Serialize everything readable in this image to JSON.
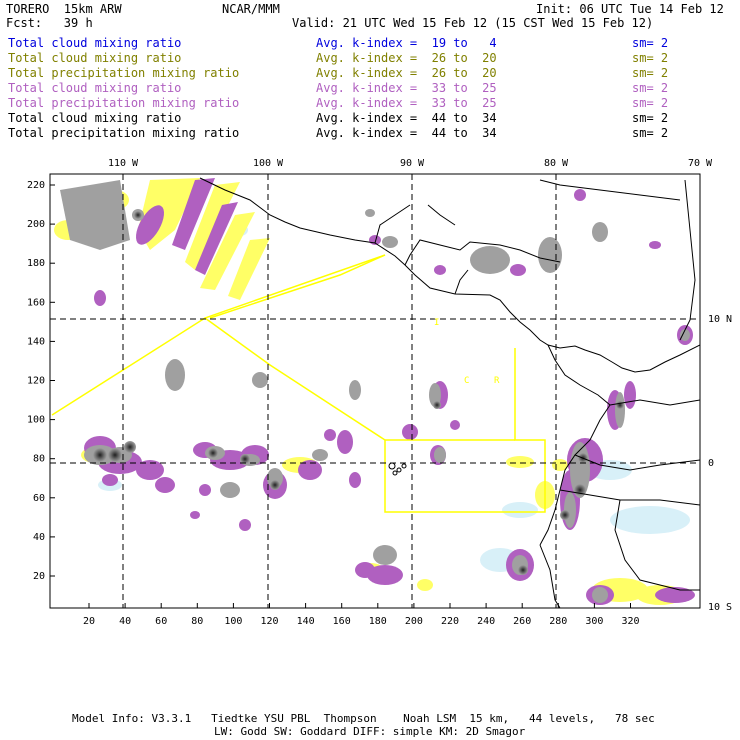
{
  "header": {
    "model": "TORERO  15km ARW",
    "center": "NCAR/MMM",
    "init": "Init: 06 UTC Tue 14 Feb 12",
    "fcst": "Fcst:   39 h",
    "valid": "Valid: 21 UTC Wed 15 Feb 12 (15 CST Wed 15 Feb 12)"
  },
  "legend": [
    {
      "field": "Total cloud mixing ratio",
      "range": "Avg. k-index =  19 to   4",
      "sm": "sm= 2",
      "color": "#0000dd"
    },
    {
      "field": "Total cloud mixing ratio",
      "range": "Avg. k-index =  26 to  20",
      "sm": "sm= 2",
      "color": "#808000"
    },
    {
      "field": "Total precipitation mixing ratio",
      "range": "Avg. k-index =  26 to  20",
      "sm": "sm= 2",
      "color": "#808000"
    },
    {
      "field": "Total cloud mixing ratio",
      "range": "Avg. k-index =  33 to  25",
      "sm": "sm= 2",
      "color": "#b060c0"
    },
    {
      "field": "Total precipitation mixing ratio",
      "range": "Avg. k-index =  33 to  25",
      "sm": "sm= 2",
      "color": "#b060c0"
    },
    {
      "field": "Total cloud mixing ratio",
      "range": "Avg. k-index =  44 to  34",
      "sm": "sm= 2",
      "color": "#000000"
    },
    {
      "field": "Total precipitation mixing ratio",
      "range": "Avg. k-index =  44 to  34",
      "sm": "sm= 2",
      "color": "#000000"
    }
  ],
  "axes": {
    "top_labels": [
      "110 W",
      "100 W",
      "90 W",
      "80 W",
      "70 W"
    ],
    "left_labels": [
      "220",
      "200",
      "180",
      "160",
      "140",
      "120",
      "100",
      "80",
      "60",
      "40",
      "20"
    ],
    "bottom_labels": [
      "20",
      "40",
      "60",
      "80",
      "100",
      "120",
      "140",
      "160",
      "180",
      "200",
      "220",
      "240",
      "260",
      "280",
      "300",
      "320"
    ],
    "right_labels": [
      "10 N",
      "0",
      "10 S"
    ]
  },
  "region_labels": {
    "c": "C",
    "r": "R",
    "i": "I"
  },
  "colors": {
    "yellow": "#ffff66",
    "purple": "#b060c0",
    "gray": "#a0a0a0",
    "lightblue": "#d8f0f8",
    "domain_outline": "#ffff00"
  },
  "footer": {
    "line1": "Model Info: V3.3.1   Tiedtke YSU PBL  Thompson    Noah LSM  15 km,   44 levels,   78 sec",
    "line2": "LW: Godd SW: Goddard DIFF: simple KM: 2D Smagor"
  }
}
